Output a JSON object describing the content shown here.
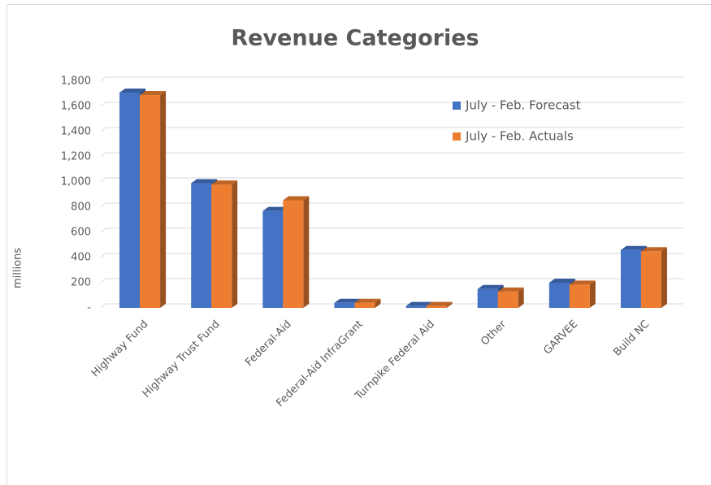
{
  "chart_data": {
    "type": "bar3d",
    "title": "Revenue Categories",
    "ylabel": "millions",
    "categories": [
      "Highway Fund",
      "Highway Trust Fund",
      "Federal-Aid",
      "Federal-Aid InfraGrant",
      "Turnpike Federal Aid",
      "Other",
      "GARVEE",
      "Build NC"
    ],
    "series": [
      {
        "name": "July - Feb. Forecast",
        "color": "#4472c4",
        "values": [
          1710,
          990,
          770,
          40,
          15,
          150,
          200,
          460
        ]
      },
      {
        "name": "July - Feb. Actuals",
        "color": "#ed7d31",
        "values": [
          1690,
          980,
          855,
          40,
          15,
          130,
          185,
          450
        ]
      }
    ],
    "ylim": [
      0,
      1800
    ],
    "yticks": [
      {
        "value": 0,
        "label": "-"
      },
      200,
      400,
      600,
      800,
      {
        "value": 1000,
        "label": "1,000"
      },
      {
        "value": 1200,
        "label": "1,200"
      },
      {
        "value": 1400,
        "label": "1,400"
      },
      {
        "value": 1600,
        "label": "1,600"
      },
      {
        "value": 1800,
        "label": "1,800"
      }
    ],
    "grid": true,
    "legend": "upper right"
  }
}
